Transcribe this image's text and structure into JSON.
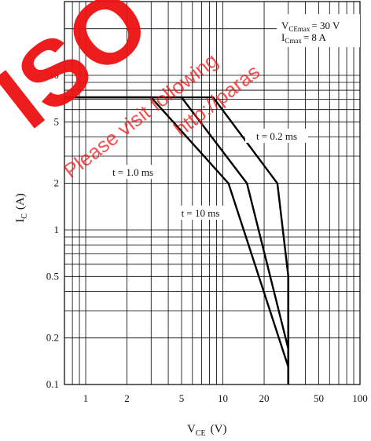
{
  "chart_data": {
    "type": "line",
    "x_scale": "log",
    "y_scale": "log",
    "xlim": [
      0.7,
      100
    ],
    "ylim": [
      0.1,
      30
    ],
    "grid": true,
    "xticks": [
      "1",
      "2",
      "5",
      "10",
      "20",
      "50",
      "100"
    ],
    "xtick_values": [
      1,
      2,
      5,
      10,
      20,
      50,
      100
    ],
    "yticks": [
      "0.1",
      "0.2",
      "0.5",
      "1",
      "2",
      "5",
      "10"
    ],
    "ytick_values": [
      0.1,
      0.2,
      0.5,
      1,
      2,
      5,
      10
    ],
    "xlabel": {
      "main": "V",
      "sub": "CE",
      "unit": "(V)"
    },
    "ylabel": {
      "main": "I",
      "sub": "C",
      "unit": "(A)"
    },
    "ratings": [
      {
        "main": "V",
        "sub": "CEmax",
        "value": "= 30 V"
      },
      {
        "main": "I",
        "sub": "Cmax",
        "value": "= 8 A"
      }
    ],
    "series": [
      {
        "name": "t = 0.2 ms",
        "points": [
          [
            0.7,
            7.2
          ],
          [
            8.5,
            7.2
          ],
          [
            25,
            2.0
          ],
          [
            30,
            0.5
          ]
        ]
      },
      {
        "name": "t = 1.0 ms",
        "points": [
          [
            0.7,
            7.2
          ],
          [
            5.0,
            7.2
          ],
          [
            15,
            2.0
          ],
          [
            30,
            0.17
          ]
        ]
      },
      {
        "name": "t = 10 ms",
        "points": [
          [
            0.7,
            7.2
          ],
          [
            3.0,
            7.2
          ],
          [
            11,
            2.0
          ],
          [
            30,
            0.13
          ]
        ]
      }
    ],
    "vline": {
      "x": 30,
      "y": [
        0.1,
        0.5
      ]
    },
    "hline": {
      "y": 8,
      "x": [
        0.7,
        30
      ]
    },
    "annotations": [
      "t = 0.2 ms",
      "t = 1.0 ms",
      "t = 10 ms"
    ]
  },
  "watermark": {
    "logo": "ISO",
    "text1": "Please visit following",
    "text2": "http://paras",
    "color": "#ee1111"
  }
}
